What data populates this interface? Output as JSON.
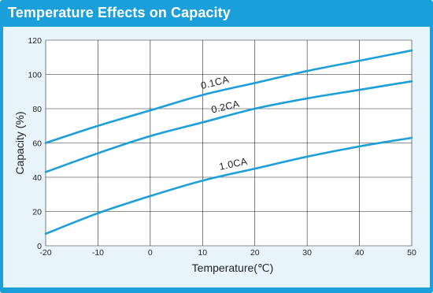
{
  "header": {
    "title": "Temperature Effects on Capacity"
  },
  "colors": {
    "accent": "#1a9fda",
    "curve": "#1c9ed8",
    "grid": "#222222",
    "panel_bg": "#e8f4fb"
  },
  "chart_data": {
    "type": "line",
    "title": "Temperature Effects on Capacity",
    "xlabel": "Temperature(℃)",
    "ylabel": "Capacity (%)",
    "xlim": [
      -20,
      50
    ],
    "ylim": [
      0,
      120
    ],
    "x_ticks": [
      -20,
      -10,
      0,
      10,
      20,
      30,
      40,
      50
    ],
    "y_ticks": [
      0,
      20,
      40,
      60,
      80,
      100,
      120
    ],
    "grid": true,
    "series": [
      {
        "name": "0.1CA",
        "x": [
          -20,
          -10,
          0,
          10,
          20,
          30,
          40,
          50
        ],
        "y": [
          60,
          70,
          79,
          88,
          95,
          102,
          108,
          114
        ]
      },
      {
        "name": "0.2CA",
        "x": [
          -20,
          -10,
          0,
          10,
          20,
          30,
          40,
          50
        ],
        "y": [
          43,
          54,
          64,
          72,
          80,
          86,
          91,
          96
        ]
      },
      {
        "name": "1.0CA",
        "x": [
          -20,
          -10,
          0,
          10,
          20,
          30,
          40,
          50
        ],
        "y": [
          7,
          19,
          29,
          38,
          45,
          52,
          58,
          63
        ]
      }
    ]
  }
}
